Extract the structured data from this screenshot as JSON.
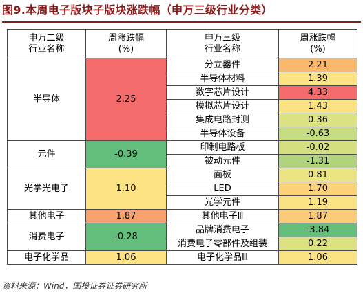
{
  "title": "图9.本周电子版块子版块涨跌幅（申万三级行业分类）",
  "headers": {
    "level2_line1": "申万二级",
    "level2_line2": "行业名称",
    "change2_line1": "周涨跌幅",
    "change2_line2": "(%)",
    "level3_line1": "申万三级",
    "level3_line2": "行业名称",
    "change3_line1": "周涨跌幅",
    "change3_line2": "(%)"
  },
  "groups": [
    {
      "name": "半导体",
      "change": "2.25",
      "color": "#F46B6B",
      "subs": [
        {
          "name": "分立器件",
          "change": "2.21",
          "color": "#F9B86C"
        },
        {
          "name": "半导体材料",
          "change": "1.39",
          "color": "#FBE383"
        },
        {
          "name": "数字芯片设计",
          "change": "4.33",
          "color": "#F46B6B"
        },
        {
          "name": "模拟芯片设计",
          "change": "1.43",
          "color": "#FBE383"
        },
        {
          "name": "集成电路封测",
          "change": "0.36",
          "color": "#DDE382"
        },
        {
          "name": "半导体设备",
          "change": "-0.63",
          "color": "#C6DC80"
        }
      ]
    },
    {
      "name": "元件",
      "change": "-0.39",
      "color": "#63BE7B",
      "subs": [
        {
          "name": "印制电路板",
          "change": "-0.02",
          "color": "#D4E080"
        },
        {
          "name": "被动元件",
          "change": "-1.31",
          "color": "#AFD47D"
        }
      ]
    },
    {
      "name": "光学光电子",
      "change": "1.10",
      "color": "#FFE485",
      "subs": [
        {
          "name": "面板",
          "change": "0.81",
          "color": "#ECE482"
        },
        {
          "name": "LED",
          "change": "1.70",
          "color": "#FBD27A"
        },
        {
          "name": "光学元件",
          "change": "1.19",
          "color": "#FBE383"
        }
      ]
    },
    {
      "name": "其他电子",
      "change": "1.87",
      "color": "#F9A26E",
      "subs": [
        {
          "name": "其他电子Ⅲ",
          "change": "1.87",
          "color": "#FBCB79"
        }
      ]
    },
    {
      "name": "消费电子",
      "change": "-0.28",
      "color": "#63BE7B",
      "subs": [
        {
          "name": "品牌消费电子",
          "change": "-3.84",
          "color": "#63BE7B"
        },
        {
          "name": "消费电子零部件及组装",
          "change": "0.22",
          "color": "#DCE282"
        }
      ]
    },
    {
      "name": "电子化学品",
      "change": "1.06",
      "color": "#FFE485",
      "subs": [
        {
          "name": "电子化学品Ⅲ",
          "change": "1.06",
          "color": "#FBE383"
        }
      ]
    }
  ],
  "source": "资料来源：Wind，国投证券证券研究所"
}
